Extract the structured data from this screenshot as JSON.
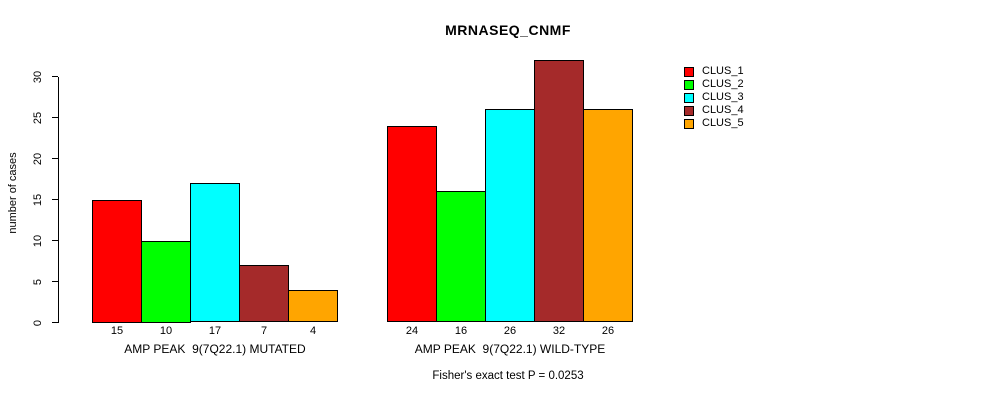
{
  "page": {
    "background_color": "#FFFFFF",
    "text_color": "#000000"
  },
  "chart_data": {
    "type": "bar",
    "title": "MRNASEQ_CNMF",
    "ylabel": "number of cases",
    "xlabel": "",
    "ylim": [
      0,
      30
    ],
    "yticks": [
      0,
      5,
      10,
      15,
      20,
      25,
      30
    ],
    "grid": false,
    "legend_position": "right-outside",
    "bar_border_color": "#000000",
    "groups": [
      {
        "label": "AMP PEAK  9(7Q22.1) MUTATED",
        "values": [
          15,
          10,
          17,
          7,
          4
        ]
      },
      {
        "label": "AMP PEAK  9(7Q22.1) WILD-TYPE",
        "values": [
          24,
          16,
          26,
          32,
          26
        ]
      }
    ],
    "series": [
      {
        "name": "CLUS_1",
        "color": "#FF0000",
        "values": [
          15,
          24
        ]
      },
      {
        "name": "CLUS_2",
        "color": "#00FF00",
        "values": [
          10,
          16
        ]
      },
      {
        "name": "CLUS_3",
        "color": "#00FFFF",
        "values": [
          17,
          26
        ]
      },
      {
        "name": "CLUS_4",
        "color": "#A52A2A",
        "values": [
          7,
          32
        ]
      },
      {
        "name": "CLUS_5",
        "color": "#FFA500",
        "values": [
          4,
          26
        ]
      }
    ],
    "annotation": "Fisher's exact test P = 0.0253"
  }
}
